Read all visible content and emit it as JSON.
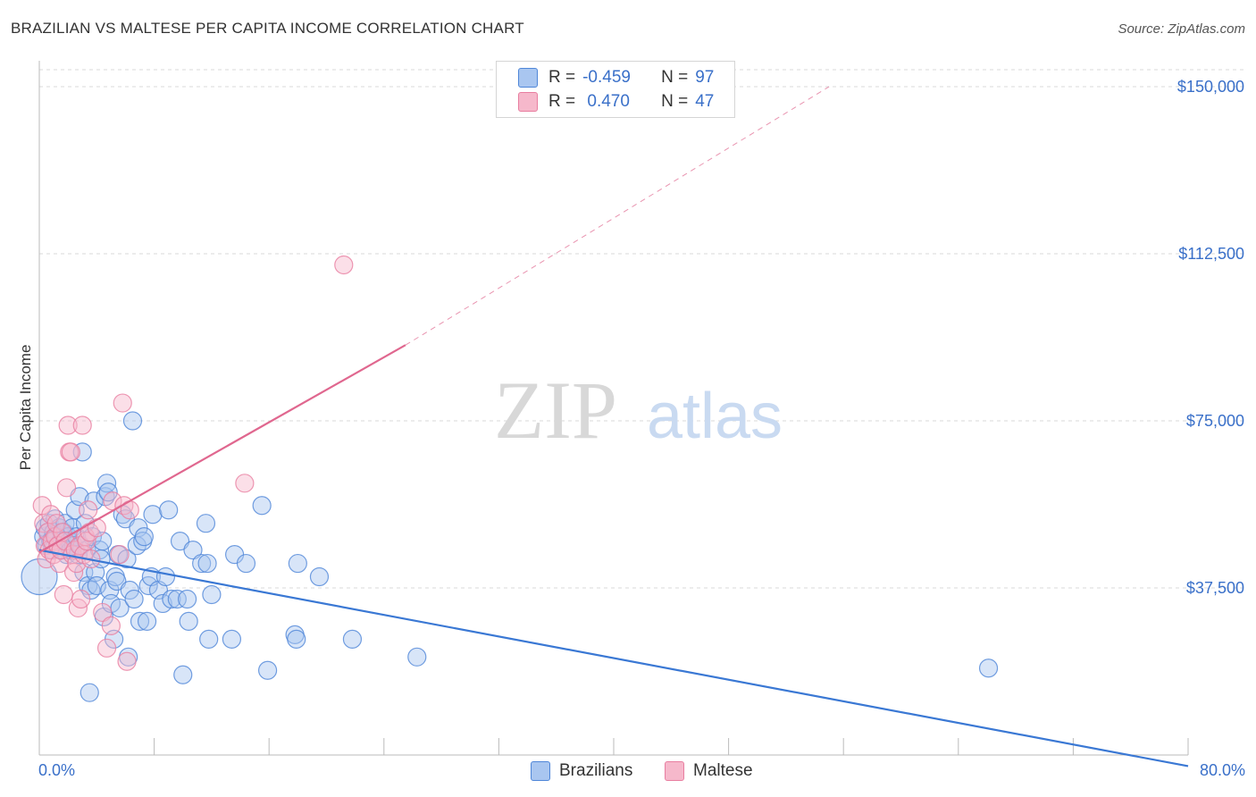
{
  "header": {
    "title": "BRAZILIAN VS MALTESE PER CAPITA INCOME CORRELATION CHART",
    "source": "Source: ZipAtlas.com"
  },
  "watermark": {
    "zip": "ZIP",
    "atlas": "atlas"
  },
  "legend": {
    "rows": [
      {
        "r_label": "R =",
        "r_value": "-0.459",
        "n_label": "N =",
        "n_value": "97",
        "color": "#a9c6f0"
      },
      {
        "r_label": "R =",
        "r_value": " 0.470",
        "n_label": "N =",
        "n_value": "47",
        "color": "#f6b8cb"
      }
    ]
  },
  "bottom_legend": {
    "series1": "Brazilians",
    "series2": "Maltese"
  },
  "colors": {
    "blue_fill": "#a9c6f0",
    "blue_stroke": "#4f86d8",
    "blue_line": "#3a78d4",
    "pink_fill": "#f6b8cb",
    "pink_stroke": "#e87ea0",
    "pink_line": "#e0678f",
    "grid": "#d9d9d9",
    "axis": "#bbbbbb",
    "tick_text": "#3a70c9"
  },
  "chart_data": {
    "type": "scatter",
    "title": "BRAZILIAN VS MALTESE PER CAPITA INCOME CORRELATION CHART",
    "xlabel": "",
    "ylabel": "Per Capita Income",
    "xlim": [
      0,
      80
    ],
    "ylim": [
      0,
      155000
    ],
    "x_tick_labels": [
      "0.0%",
      "80.0%"
    ],
    "y_ticks": [
      37500,
      75000,
      112500,
      150000
    ],
    "y_tick_labels": [
      "$37,500",
      "$75,000",
      "$112,500",
      "$150,000"
    ],
    "grid": true,
    "legend_position": "top-center",
    "series": [
      {
        "name": "Brazilians",
        "stats": {
          "R": -0.459,
          "N": 97
        },
        "trend": {
          "x": [
            0,
            80
          ],
          "y": [
            46000,
            -2500
          ],
          "style": "solid"
        },
        "points": [
          [
            0.0,
            40000
          ],
          [
            0.3,
            49000
          ],
          [
            0.4,
            51000
          ],
          [
            0.5,
            47000
          ],
          [
            0.6,
            50000
          ],
          [
            0.7,
            52000
          ],
          [
            0.8,
            48000
          ],
          [
            0.9,
            46000
          ],
          [
            1.0,
            50000
          ],
          [
            1.1,
            53000
          ],
          [
            1.2,
            49000
          ],
          [
            1.3,
            47000
          ],
          [
            1.4,
            51000
          ],
          [
            1.5,
            48000
          ],
          [
            1.6,
            46000
          ],
          [
            1.7,
            50000
          ],
          [
            1.8,
            52000
          ],
          [
            1.9,
            45000
          ],
          [
            2.0,
            49000
          ],
          [
            2.1,
            48000
          ],
          [
            2.2,
            46000
          ],
          [
            2.3,
            51000
          ],
          [
            2.4,
            47000
          ],
          [
            2.5,
            55000
          ],
          [
            2.6,
            49000
          ],
          [
            2.7,
            45000
          ],
          [
            2.8,
            58000
          ],
          [
            2.9,
            47000
          ],
          [
            3.0,
            68000
          ],
          [
            3.1,
            41000
          ],
          [
            3.2,
            52000
          ],
          [
            3.3,
            46000
          ],
          [
            3.4,
            38000
          ],
          [
            3.5,
            14000
          ],
          [
            3.6,
            37000
          ],
          [
            3.7,
            49000
          ],
          [
            3.8,
            57000
          ],
          [
            3.9,
            41000
          ],
          [
            4.0,
            38000
          ],
          [
            4.2,
            46000
          ],
          [
            4.3,
            44000
          ],
          [
            4.4,
            48000
          ],
          [
            4.5,
            31000
          ],
          [
            4.6,
            58000
          ],
          [
            4.7,
            61000
          ],
          [
            4.8,
            59000
          ],
          [
            4.9,
            37000
          ],
          [
            5.0,
            34000
          ],
          [
            5.2,
            26000
          ],
          [
            5.3,
            40000
          ],
          [
            5.4,
            39000
          ],
          [
            5.5,
            45000
          ],
          [
            5.6,
            33000
          ],
          [
            5.8,
            54000
          ],
          [
            6.0,
            53000
          ],
          [
            6.1,
            44000
          ],
          [
            6.2,
            22000
          ],
          [
            6.3,
            37000
          ],
          [
            6.5,
            75000
          ],
          [
            6.6,
            35000
          ],
          [
            6.8,
            47000
          ],
          [
            6.9,
            51000
          ],
          [
            7.0,
            30000
          ],
          [
            7.2,
            48000
          ],
          [
            7.3,
            49000
          ],
          [
            7.5,
            30000
          ],
          [
            7.6,
            38000
          ],
          [
            7.8,
            40000
          ],
          [
            7.9,
            54000
          ],
          [
            8.3,
            37000
          ],
          [
            8.6,
            34000
          ],
          [
            8.8,
            40000
          ],
          [
            9.0,
            55000
          ],
          [
            9.2,
            35000
          ],
          [
            9.6,
            35000
          ],
          [
            9.8,
            48000
          ],
          [
            10.0,
            18000
          ],
          [
            10.3,
            35000
          ],
          [
            10.4,
            30000
          ],
          [
            10.7,
            46000
          ],
          [
            11.3,
            43000
          ],
          [
            11.6,
            52000
          ],
          [
            11.7,
            43000
          ],
          [
            11.8,
            26000
          ],
          [
            12.0,
            36000
          ],
          [
            13.4,
            26000
          ],
          [
            13.6,
            45000
          ],
          [
            14.4,
            43000
          ],
          [
            15.5,
            56000
          ],
          [
            15.9,
            19000
          ],
          [
            17.8,
            27000
          ],
          [
            17.9,
            26000
          ],
          [
            18.0,
            43000
          ],
          [
            19.5,
            40000
          ],
          [
            21.8,
            26000
          ],
          [
            26.3,
            22000
          ],
          [
            66.1,
            19500
          ]
        ]
      },
      {
        "name": "Maltese",
        "stats": {
          "R": 0.47,
          "N": 47
        },
        "trend": {
          "x": [
            0,
            25.5
          ],
          "y": [
            45500,
            92000
          ],
          "style": "solid",
          "extended_to": [
            55,
            150000
          ],
          "extended_style": "dashed"
        },
        "points": [
          [
            0.2,
            56000
          ],
          [
            0.3,
            52000
          ],
          [
            0.4,
            47000
          ],
          [
            0.5,
            44000
          ],
          [
            0.6,
            50000
          ],
          [
            0.7,
            46000
          ],
          [
            0.8,
            54000
          ],
          [
            0.9,
            48000
          ],
          [
            1.0,
            45000
          ],
          [
            1.1,
            49000
          ],
          [
            1.2,
            52000
          ],
          [
            1.3,
            47000
          ],
          [
            1.4,
            43000
          ],
          [
            1.5,
            46000
          ],
          [
            1.6,
            50000
          ],
          [
            1.7,
            36000
          ],
          [
            1.8,
            48000
          ],
          [
            1.9,
            60000
          ],
          [
            2.0,
            74000
          ],
          [
            2.1,
            68000
          ],
          [
            2.2,
            68000
          ],
          [
            2.3,
            45000
          ],
          [
            2.4,
            41000
          ],
          [
            2.5,
            46000
          ],
          [
            2.6,
            43000
          ],
          [
            2.7,
            33000
          ],
          [
            2.8,
            47000
          ],
          [
            2.9,
            35000
          ],
          [
            3.0,
            74000
          ],
          [
            3.1,
            45000
          ],
          [
            3.2,
            49000
          ],
          [
            3.3,
            48000
          ],
          [
            3.4,
            55000
          ],
          [
            3.5,
            50000
          ],
          [
            3.6,
            44000
          ],
          [
            4.0,
            51000
          ],
          [
            4.4,
            32000
          ],
          [
            4.7,
            24000
          ],
          [
            5.0,
            29000
          ],
          [
            5.1,
            57000
          ],
          [
            5.6,
            45000
          ],
          [
            5.8,
            79000
          ],
          [
            5.9,
            56000
          ],
          [
            6.1,
            21000
          ],
          [
            6.3,
            55000
          ],
          [
            14.3,
            61000
          ],
          [
            21.2,
            110000
          ]
        ]
      }
    ]
  }
}
